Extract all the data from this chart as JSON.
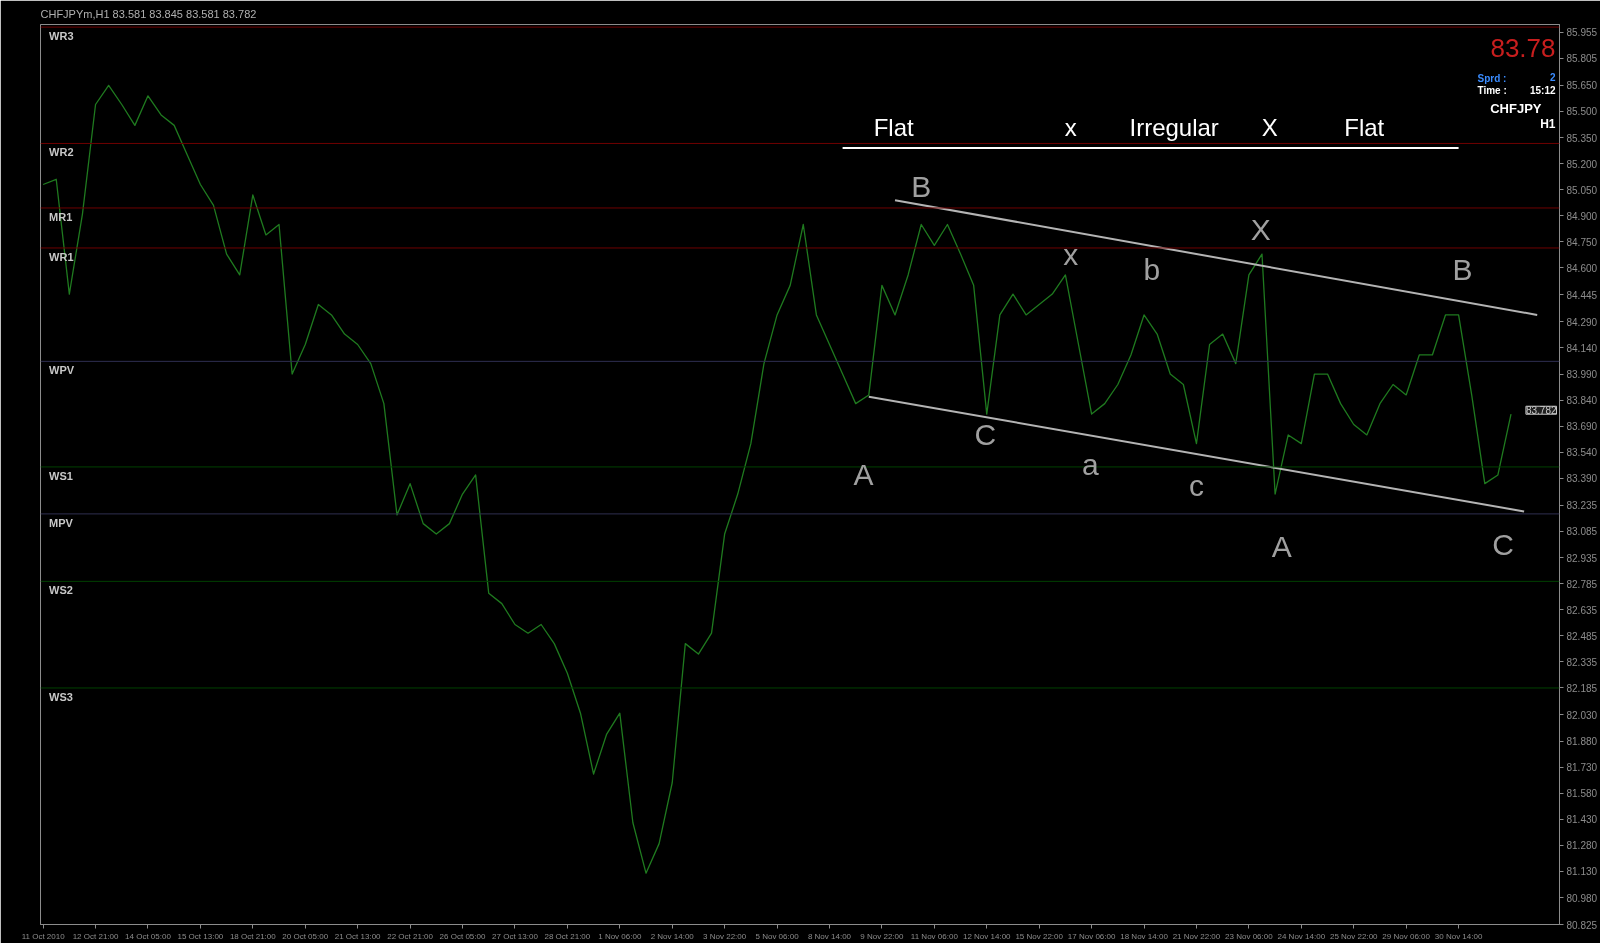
{
  "chart_data": {
    "type": "line",
    "title": "CHFJPYm,H1  83.581 83.845 83.581 83.782",
    "categories": [
      "11 Oct 2010",
      null,
      null,
      null,
      "12 Oct 21:00",
      null,
      null,
      null,
      "14 Oct 05:00",
      null,
      null,
      null,
      "15 Oct 13:00",
      null,
      null,
      null,
      "18 Oct 21:00",
      null,
      null,
      null,
      "20 Oct 05:00",
      null,
      null,
      null,
      "21 Oct 13:00",
      null,
      null,
      null,
      "22 Oct 21:00",
      null,
      null,
      null,
      "26 Oct 05:00",
      null,
      null,
      null,
      "27 Oct 13:00",
      null,
      null,
      null,
      "28 Oct 21:00",
      null,
      null,
      null,
      "1 Nov 06:00",
      null,
      null,
      null,
      "2 Nov 14:00",
      null,
      null,
      null,
      "3 Nov 22:00",
      null,
      null,
      null,
      "5 Nov 06:00",
      null,
      null,
      null,
      "8 Nov 14:00",
      null,
      null,
      null,
      "9 Nov 22:00",
      null,
      null,
      null,
      "11 Nov 06:00",
      null,
      null,
      null,
      "12 Nov 14:00",
      null,
      null,
      null,
      "15 Nov 22:00",
      null,
      null,
      null,
      "17 Nov 06:00",
      null,
      null,
      null,
      "18 Nov 14:00",
      null,
      null,
      null,
      "21 Nov 22:00",
      null,
      null,
      null,
      "23 Nov 06:00",
      null,
      null,
      null,
      "24 Nov 14:00",
      null,
      null,
      null,
      "25 Nov 22:00",
      null,
      null,
      null,
      "29 Nov 06:00",
      null,
      null,
      null,
      "30 Nov 14:00",
      null,
      null,
      null,
      null,
      null,
      null,
      null
    ],
    "ylim": [
      80.825,
      86.0
    ],
    "yticks": [
      85.955,
      85.805,
      {
        "value": 85.65,
        "label": "85.650"
      },
      {
        "value": 85.5,
        "label": "85.500"
      },
      {
        "value": 85.35,
        "label": "85.350"
      },
      {
        "value": 85.2,
        "label": "85.200"
      },
      {
        "value": 85.05,
        "label": "85.050"
      },
      {
        "value": 84.9,
        "label": "84.900"
      },
      {
        "value": 84.75,
        "label": "84.750"
      },
      {
        "value": 84.6,
        "label": "84.600"
      },
      84.445,
      {
        "value": 84.29,
        "label": "84.290"
      },
      {
        "value": 84.14,
        "label": "84.140"
      },
      {
        "value": 83.99,
        "label": "83.990"
      },
      {
        "value": 83.84,
        "label": "83.840"
      },
      {
        "value": 83.69,
        "label": "83.690"
      },
      {
        "value": 83.54,
        "label": "83.540"
      },
      {
        "value": 83.39,
        "label": "83.390"
      },
      83.235,
      83.085,
      82.935,
      82.785,
      82.635,
      82.485,
      82.335,
      82.185,
      {
        "value": 82.03,
        "label": "82.030"
      },
      {
        "value": 81.88,
        "label": "81.880"
      },
      {
        "value": 81.73,
        "label": "81.730"
      },
      {
        "value": 81.58,
        "label": "81.580"
      },
      {
        "value": 81.43,
        "label": "81.430"
      },
      {
        "value": 81.28,
        "label": "81.280"
      },
      {
        "value": 81.13,
        "label": "81.130"
      },
      {
        "value": 80.98,
        "label": "80.980"
      },
      80.825
    ],
    "grid": false,
    "marker": "none",
    "line_style": "solid",
    "series": [
      {
        "color": "#1f7a1f",
        "values": [
          85.08,
          85.11,
          84.45,
          84.91,
          85.54,
          85.65,
          85.54,
          85.42,
          85.59,
          85.48,
          85.42,
          85.25,
          85.08,
          84.96,
          84.68,
          84.56,
          85.02,
          84.79,
          84.85,
          83.99,
          84.16,
          84.39,
          84.33,
          84.22,
          84.16,
          84.05,
          83.82,
          83.18,
          83.36,
          83.13,
          83.07,
          83.13,
          83.3,
          83.41,
          82.73,
          82.67,
          82.55,
          82.5,
          82.55,
          82.44,
          82.27,
          82.04,
          81.69,
          81.92,
          82.04,
          81.41,
          81.12,
          81.29,
          81.64,
          82.44,
          82.38,
          82.5,
          83.07,
          83.3,
          83.59,
          84.05,
          84.33,
          84.5,
          84.85,
          84.33,
          84.16,
          83.99,
          83.82,
          83.87,
          84.5,
          84.33,
          84.56,
          84.85,
          84.73,
          84.85,
          84.68,
          84.5,
          83.76,
          84.33,
          84.45,
          84.33,
          84.39,
          84.45,
          84.56,
          84.16,
          83.76,
          83.82,
          83.93,
          84.1,
          84.33,
          84.22,
          83.99,
          83.93,
          83.59,
          84.16,
          84.22,
          84.05,
          84.56,
          84.68,
          83.3,
          83.64,
          83.59,
          83.99,
          83.99,
          83.82,
          83.7,
          83.64,
          83.82,
          83.93,
          83.87,
          84.1,
          84.1,
          84.33,
          84.33,
          83.87,
          83.36,
          83.41,
          83.76,
          null,
          null,
          null
        ]
      },
      {
        "color": "#b4b4b4",
        "values": [
          null,
          null,
          null,
          null,
          null,
          null,
          null,
          null,
          null,
          null,
          null,
          null,
          null,
          null,
          null,
          null,
          null,
          null,
          null,
          null,
          null,
          null,
          null,
          null,
          null,
          null,
          null,
          null,
          null,
          null,
          null,
          null,
          null,
          null,
          null,
          null,
          null,
          null,
          null,
          null,
          null,
          null,
          null,
          null,
          null,
          null,
          null,
          null,
          null,
          null,
          null,
          null,
          null,
          null,
          null,
          null,
          null,
          null,
          null,
          null,
          null,
          null,
          null,
          null,
          null,
          84.99,
          null,
          null,
          null,
          null,
          null,
          null,
          null,
          null,
          null,
          null,
          null,
          null,
          null,
          null,
          null,
          null,
          null,
          null,
          null,
          null,
          null,
          null,
          null,
          null,
          null,
          null,
          null,
          null,
          null,
          null,
          null,
          null,
          null,
          null,
          null,
          null,
          null,
          null,
          null,
          null,
          null,
          null,
          null,
          null,
          null,
          null,
          null,
          null,
          84.33,
          null
        ]
      },
      {
        "color": "#b4b4b4",
        "values": [
          null,
          null,
          null,
          null,
          null,
          null,
          null,
          null,
          null,
          null,
          null,
          null,
          null,
          null,
          null,
          null,
          null,
          null,
          null,
          null,
          null,
          null,
          null,
          null,
          null,
          null,
          null,
          null,
          null,
          null,
          null,
          null,
          null,
          null,
          null,
          null,
          null,
          null,
          null,
          null,
          null,
          null,
          null,
          null,
          null,
          null,
          null,
          null,
          null,
          null,
          null,
          null,
          null,
          null,
          null,
          null,
          null,
          null,
          null,
          null,
          null,
          null,
          null,
          83.86,
          null,
          null,
          null,
          null,
          null,
          null,
          null,
          null,
          null,
          null,
          null,
          null,
          null,
          null,
          null,
          null,
          null,
          null,
          null,
          null,
          null,
          null,
          null,
          null,
          null,
          null,
          null,
          null,
          null,
          null,
          null,
          null,
          null,
          null,
          null,
          null,
          null,
          null,
          null,
          null,
          null,
          null,
          null,
          null,
          null,
          null,
          null,
          null,
          null,
          83.2,
          null,
          null
        ]
      },
      {
        "color": "#ffffff",
        "values": [
          null,
          null,
          null,
          null,
          null,
          null,
          null,
          null,
          null,
          null,
          null,
          null,
          null,
          null,
          null,
          null,
          null,
          null,
          null,
          null,
          null,
          null,
          null,
          null,
          null,
          null,
          null,
          null,
          null,
          null,
          null,
          null,
          null,
          null,
          null,
          null,
          null,
          null,
          null,
          null,
          null,
          null,
          null,
          null,
          null,
          null,
          null,
          null,
          null,
          null,
          null,
          null,
          null,
          null,
          null,
          null,
          null,
          null,
          null,
          null,
          null,
          85.29,
          null,
          null,
          null,
          null,
          null,
          null,
          null,
          null,
          null,
          null,
          null,
          null,
          null,
          null,
          null,
          null,
          null,
          null,
          null,
          null,
          null,
          null,
          null,
          null,
          null,
          null,
          null,
          null,
          null,
          null,
          null,
          null,
          null,
          null,
          null,
          null,
          null,
          null,
          null,
          null,
          null,
          null,
          null,
          null,
          null,
          null,
          85.29,
          null,
          null,
          null,
          null,
          null,
          null,
          null
        ]
      }
    ],
    "ref_lines": [
      {
        "axis": "y",
        "value": 85.985,
        "label": "WR3",
        "color": "#6e0000"
      },
      {
        "axis": "y",
        "value": 85.316,
        "label": "WR2",
        "color": "#6e0000"
      },
      {
        "axis": "y",
        "value": 84.945,
        "label": "MR1",
        "color": "#6e0000"
      },
      {
        "axis": "y",
        "value": 84.715,
        "label": "WR1",
        "color": "#6e0000"
      },
      {
        "axis": "y",
        "value": 84.063,
        "label": "WPV",
        "color": "#2e2e50"
      },
      {
        "axis": "y",
        "value": 83.456,
        "label": "WS1",
        "color": "#004000"
      },
      {
        "axis": "y",
        "value": 83.186,
        "label": "MPV",
        "color": "#2e2e50"
      },
      {
        "axis": "y",
        "value": 82.798,
        "label": "WS2",
        "color": "#004000"
      },
      {
        "axis": "y",
        "value": 82.185,
        "label": "WS3",
        "color": "#004000"
      }
    ],
    "annotations": [
      "Flat",
      "x",
      "Irregular",
      "X",
      "Flat",
      "B",
      "C",
      "A",
      "x",
      "a",
      "b",
      "c",
      "X",
      "A",
      "B",
      "C",
      "83.782",
      "83.78",
      "Sprd :",
      "2",
      "Time :",
      "15:12",
      "CHFJPY",
      "H1"
    ]
  }
}
